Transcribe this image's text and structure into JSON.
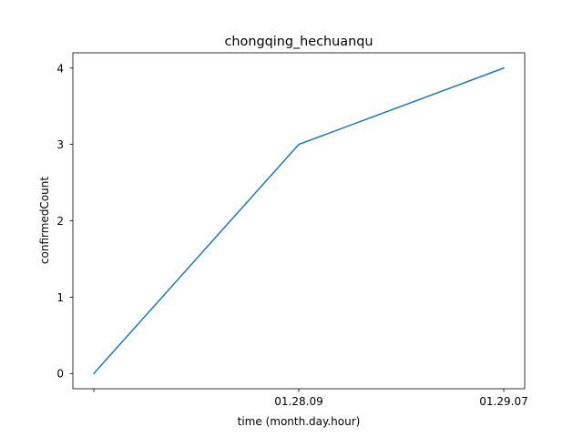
{
  "chart_data": {
    "type": "line",
    "title": "chongqing_hechuanqu",
    "xlabel": "time (month.day.hour)",
    "ylabel": "confirmedCount",
    "categories": [
      "",
      "01.28.09",
      "01.29.07"
    ],
    "series": [
      {
        "values": [
          0,
          3,
          4
        ],
        "color": "#1f77b4"
      }
    ],
    "ylim": [
      -0.2,
      4.2
    ],
    "yticks": [
      0,
      1,
      2,
      3,
      4
    ],
    "grid": false,
    "legend": "none"
  }
}
